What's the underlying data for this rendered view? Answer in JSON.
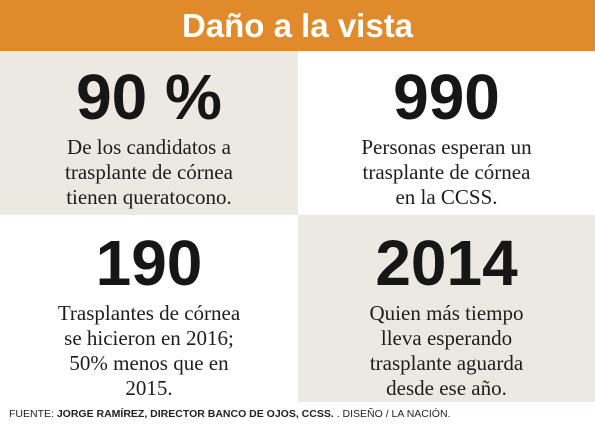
{
  "header": {
    "title": "Daño a la vista"
  },
  "stats": [
    {
      "value": "90 %",
      "lines": [
        "De los candidatos a",
        "trasplante de córnea",
        "tienen queratocono."
      ]
    },
    {
      "value": "990",
      "lines": [
        "Personas esperan un",
        "trasplante de córnea",
        "en la CCSS."
      ]
    },
    {
      "value": "190",
      "lines": [
        "Trasplantes de córnea",
        "se hicieron en 2016;",
        "50% menos que en",
        "2015."
      ]
    },
    {
      "value": "2014",
      "lines": [
        "Quien más tiempo",
        "lleva esperando",
        "trasplante aguarda",
        "desde ese año."
      ]
    }
  ],
  "footer": {
    "prefix": "FUENTE: ",
    "source": "JORGE RAMÍREZ, DIRECTOR BANCO DE OJOS, CCSS.",
    "suffix": " . DISEÑO / LA NACIÓN."
  },
  "colors": {
    "header_bg": "#e08a2c",
    "beige": "#ece9e2",
    "text": "#161616"
  }
}
